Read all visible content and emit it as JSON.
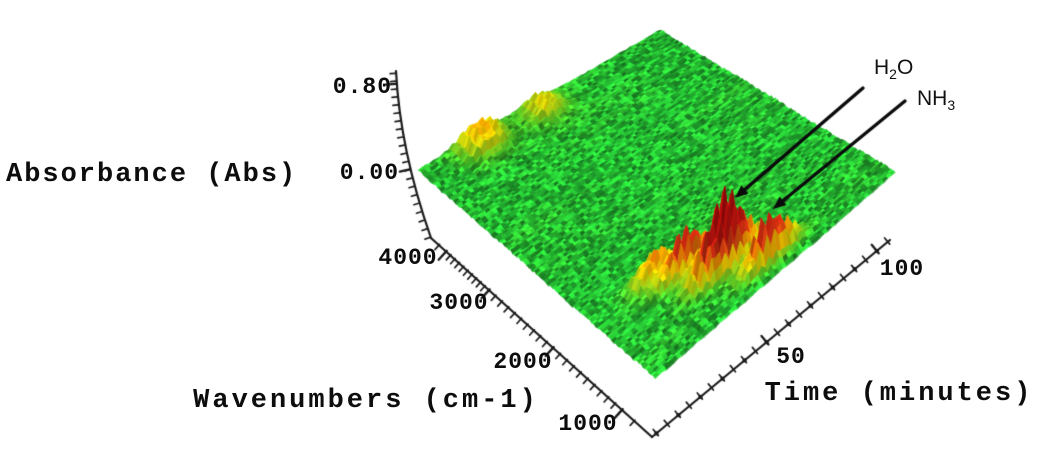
{
  "chart_data": {
    "type": "surface3d",
    "description": "3D FTIR evolved gas analysis surface: absorbance vs wavenumber vs time, green baseline with red absorbance peaks",
    "axes": {
      "absorbance": {
        "label": "Absorbance (Abs)",
        "ticks": [
          "0.80",
          "0.00"
        ],
        "range": [
          0.0,
          0.8
        ]
      },
      "wavenumbers": {
        "label": "Wavenumbers (cm-1)",
        "ticks": [
          "4000",
          "3000",
          "2000",
          "1000"
        ],
        "surface_range": [
          1000,
          4000
        ],
        "minor_tick_interval": 100
      },
      "time": {
        "label": "Time (minutes)",
        "ticks": [
          "50",
          "100"
        ],
        "surface_range": [
          0,
          110
        ],
        "minor_tick_interval": 5
      }
    },
    "annotations": [
      {
        "id": "h2o",
        "main": "H",
        "sub": "2",
        "tail": "O",
        "has_arrow": true,
        "points_to": "tall red peak"
      },
      {
        "id": "nh3",
        "main": "NH",
        "sub": "3",
        "tail": "",
        "has_arrow": true,
        "points_to": "adjacent red peak"
      }
    ],
    "style": {
      "axis_color": "#1a1a1a",
      "arrow_color": "#0b0b0b",
      "background": "#ffffff"
    },
    "surface": {
      "colormap": [
        [
          0.0,
          "#22ba30"
        ],
        [
          0.05,
          "#49c926"
        ],
        [
          0.11,
          "#aad414"
        ],
        [
          0.17,
          "#f7e000"
        ],
        [
          0.25,
          "#ff9b00"
        ],
        [
          0.33,
          "#e93c14"
        ],
        [
          0.45,
          "#cd1610"
        ],
        [
          0.7,
          "#b20a0a"
        ],
        [
          1.0,
          "#9e0606"
        ]
      ],
      "noise_abs": 0.011,
      "peaks": [
        {
          "name": "H2O band",
          "wavenumber": 1400,
          "time": 46,
          "amplitude": 0.88,
          "sigma_wn": 70,
          "sigma_t": 9,
          "phase": 0.5
        },
        {
          "name": "NH3 band",
          "wavenumber": 1150,
          "time": 58,
          "amplitude": 0.56,
          "sigma_wn": 55,
          "sigma_t": 8,
          "phase": 2.0
        },
        {
          "name": "unlabeled band",
          "wavenumber": 1600,
          "time": 36,
          "amplitude": 0.48,
          "sigma_wn": 55,
          "sigma_t": 8,
          "phase": 3.5
        },
        {
          "name": "unlabeled band",
          "wavenumber": 1760,
          "time": 27,
          "amplitude": 0.36,
          "sigma_wn": 60,
          "sigma_t": 7,
          "phase": 1.0
        },
        {
          "name": "high-wn streak",
          "wavenumber": 3880,
          "time": 25,
          "amplitude": 0.3,
          "sigma_wn": 120,
          "sigma_t": 7,
          "phase": 0.8
        },
        {
          "name": "high-wn streak",
          "wavenumber": 3850,
          "time": 52,
          "amplitude": 0.22,
          "sigma_wn": 110,
          "sigma_t": 6,
          "phase": 2.6
        }
      ]
    }
  }
}
